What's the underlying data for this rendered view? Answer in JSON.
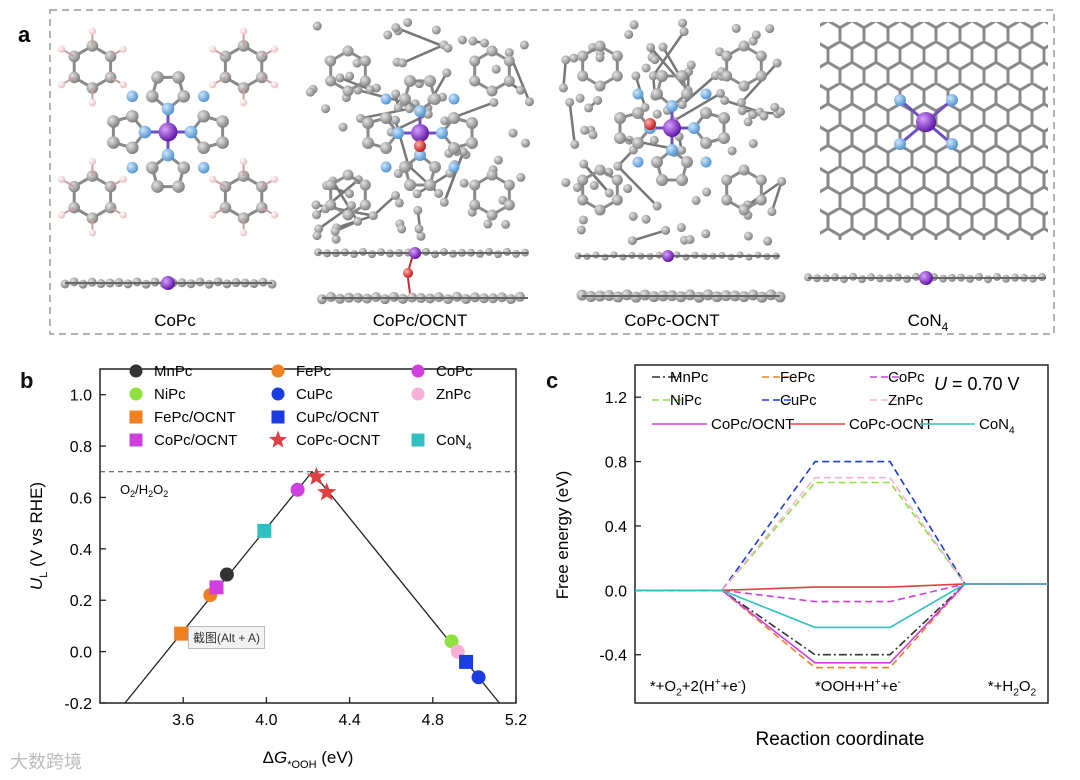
{
  "figure": {
    "panel_a": {
      "label": "a",
      "structures": [
        {
          "name": "CoPc"
        },
        {
          "name": "CoPc/OCNT"
        },
        {
          "name": "CoPc-OCNT"
        },
        {
          "name": "CoN",
          "sub": "4"
        }
      ]
    },
    "panel_b": {
      "label": "b",
      "overlay_label": "截图(Alt + A)"
    },
    "panel_c": {
      "label": "c"
    },
    "watermark": "大数跨境"
  },
  "colors": {
    "Mn": "#333333",
    "Ni": "#90e040",
    "Fe": "#f08020",
    "Cu": "#1a3ce0",
    "Co": "#d040e0",
    "Zn": "#f8b0d8",
    "OCNT": "#e04040",
    "N4": "#30c0c0"
  },
  "chart_data": [
    {
      "type": "scatter",
      "title": "",
      "xlabel": "ΔG*OOH (eV)",
      "ylabel": "UL (V vs RHE)",
      "xlim": [
        3.2,
        5.2
      ],
      "ylim": [
        -0.2,
        1.1
      ],
      "x_ticks": [
        "3.6",
        "4.0",
        "4.4",
        "4.8",
        "5.2"
      ],
      "y_ticks": [
        "-0.2",
        "0.0",
        "0.2",
        "0.4",
        "0.6",
        "0.8",
        "1.0"
      ],
      "reference_line": {
        "y": 0.7,
        "label": "O2/H2O2"
      },
      "volcano": {
        "peak_x": 4.22,
        "peak_y": 0.7
      },
      "series": [
        {
          "name": "MnPc",
          "marker": "circle",
          "color": "#333333",
          "x": [
            3.81
          ],
          "y": [
            0.3
          ]
        },
        {
          "name": "FePc",
          "marker": "circle",
          "color": "#f08020",
          "x": [
            3.73
          ],
          "y": [
            0.22
          ]
        },
        {
          "name": "CoPc",
          "marker": "circle",
          "color": "#d040e0",
          "x": [
            4.15
          ],
          "y": [
            0.63
          ]
        },
        {
          "name": "NiPc",
          "marker": "circle",
          "color": "#90e040",
          "x": [
            4.89
          ],
          "y": [
            0.04
          ]
        },
        {
          "name": "CuPc",
          "marker": "circle",
          "color": "#1a3ce0",
          "x": [
            5.02
          ],
          "y": [
            -0.1
          ]
        },
        {
          "name": "ZnPc",
          "marker": "circle",
          "color": "#f8b0d8",
          "x": [
            4.92
          ],
          "y": [
            0.0
          ]
        },
        {
          "name": "FePc/OCNT",
          "marker": "square",
          "color": "#f08020",
          "x": [
            3.59
          ],
          "y": [
            0.07
          ]
        },
        {
          "name": "CuPc/OCNT",
          "marker": "square",
          "color": "#1a3ce0",
          "x": [
            4.96
          ],
          "y": [
            -0.04
          ]
        },
        {
          "name": "CoPc/OCNT",
          "marker": "square",
          "color": "#d040e0",
          "x": [
            3.76
          ],
          "y": [
            0.25
          ]
        },
        {
          "name": "CoPc-OCNT",
          "marker": "star",
          "color": "#e04040",
          "x": [
            4.24,
            4.29
          ],
          "y": [
            0.68,
            0.62
          ]
        },
        {
          "name": "CoN4",
          "marker": "square",
          "color": "#30c0c0",
          "x": [
            3.99
          ],
          "y": [
            0.47
          ]
        }
      ],
      "legend": [
        {
          "label": "MnPc",
          "series": "MnPc"
        },
        {
          "label": "FePc",
          "series": "FePc"
        },
        {
          "label": "CoPc",
          "series": "CoPc"
        },
        {
          "label": "NiPc",
          "series": "NiPc"
        },
        {
          "label": "CuPc",
          "series": "CuPc"
        },
        {
          "label": "ZnPc",
          "series": "ZnPc"
        },
        {
          "label": "FePc/OCNT",
          "series": "FePc/OCNT"
        },
        {
          "label": "CuPc/OCNT",
          "series": "CuPc/OCNT"
        },
        {
          "label": "",
          "series": ""
        },
        {
          "label": "CoPc/OCNT",
          "series": "CoPc/OCNT"
        },
        {
          "label": "CoPc-OCNT",
          "series": "CoPc-OCNT"
        },
        {
          "label": "CoN4",
          "series": "CoN4"
        }
      ]
    },
    {
      "type": "line",
      "title": "U = 0.70 V",
      "xlabel": "Reaction coordinate",
      "ylabel": "Free energy (eV)",
      "ylim": [
        -0.7,
        1.4
      ],
      "y_ticks": [
        "1.2",
        "0.8",
        "0.4",
        "0.0",
        "-0.4"
      ],
      "x_stage_labels": [
        "*+O2+2(H+e-)",
        "*OOH+H+e-",
        "*+H2O2"
      ],
      "series": [
        {
          "name": "MnPc",
          "color": "#333333",
          "dash": "dashdot",
          "values": [
            0,
            -0.4,
            0.04
          ]
        },
        {
          "name": "FePc",
          "color": "#f08020",
          "dash": "dash",
          "values": [
            0,
            -0.48,
            0.04
          ]
        },
        {
          "name": "CoPc",
          "color": "#d040e0",
          "dash": "dash",
          "values": [
            0,
            -0.07,
            0.04
          ]
        },
        {
          "name": "NiPc",
          "color": "#90e040",
          "dash": "dash",
          "values": [
            0,
            0.67,
            0.04
          ]
        },
        {
          "name": "CuPc",
          "color": "#1a3ce0",
          "dash": "dash",
          "values": [
            0,
            0.8,
            0.04
          ]
        },
        {
          "name": "ZnPc",
          "color": "#f8b0d8",
          "dash": "dash",
          "values": [
            0,
            0.7,
            0.04
          ]
        },
        {
          "name": "CoPc/OCNT",
          "color": "#d040e0",
          "dash": "solid",
          "values": [
            0,
            -0.45,
            0.04
          ]
        },
        {
          "name": "CoPc-OCNT",
          "color": "#e04040",
          "dash": "solid",
          "values": [
            0,
            0.02,
            0.04
          ]
        },
        {
          "name": "CoN4",
          "color": "#30c0c0",
          "dash": "solid",
          "values": [
            0,
            -0.23,
            0.04
          ]
        }
      ]
    }
  ]
}
